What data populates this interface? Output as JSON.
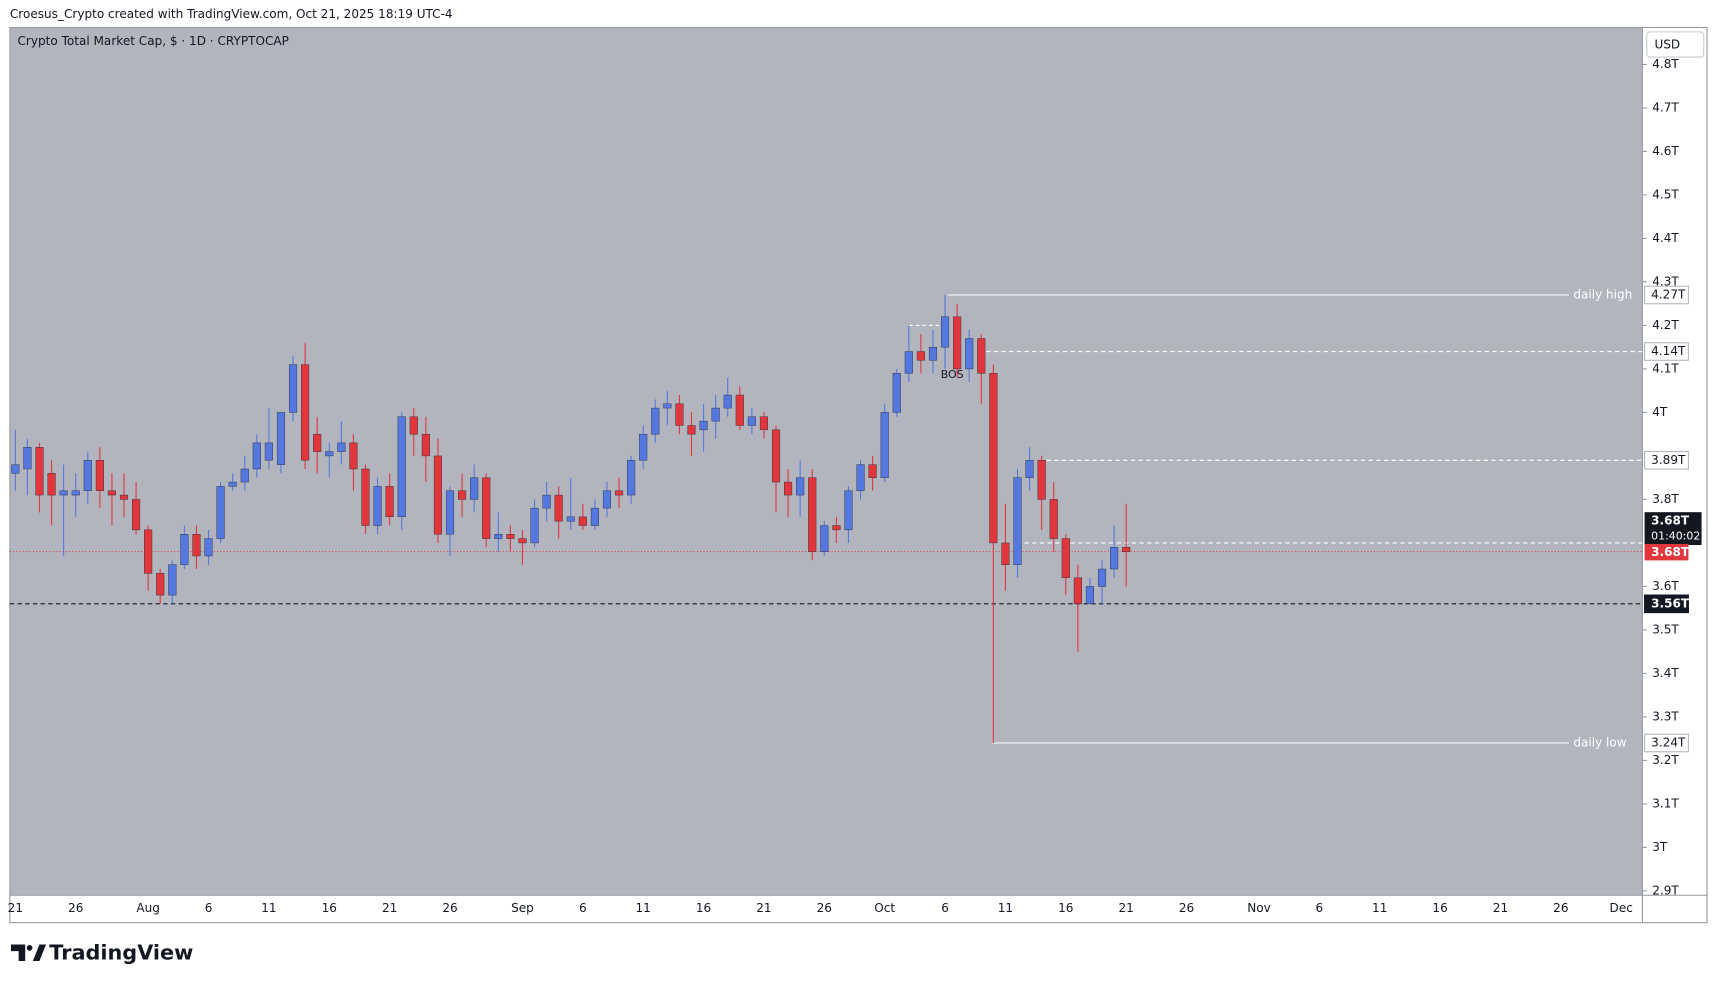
{
  "header": "Croesus_Crypto created with TradingView.com, Oct 21, 2025 18:19 UTC-4",
  "footer": "TradingView",
  "chart_data": {
    "type": "candlestick",
    "title": "Crypto Total Market Cap, $ · 1D · CRYPTOCAP",
    "currency": "USD",
    "up_color": "#5578e0",
    "down_color": "#e2363d",
    "categories": [
      "21",
      null,
      null,
      null,
      null,
      "26",
      null,
      null,
      null,
      null,
      null,
      "Aug",
      null,
      null,
      null,
      null,
      "6",
      null,
      null,
      null,
      null,
      "11",
      null,
      null,
      null,
      null,
      "16",
      null,
      null,
      null,
      null,
      "21",
      null,
      null,
      null,
      null,
      "26",
      null,
      null,
      null,
      null,
      null,
      "Sep",
      null,
      null,
      null,
      null,
      "6",
      null,
      null,
      null,
      null,
      "11",
      null,
      null,
      null,
      null,
      "16",
      null,
      null,
      null,
      null,
      "21",
      null,
      null,
      null,
      null,
      "26",
      null,
      null,
      null,
      null,
      "Oct",
      null,
      null,
      null,
      null,
      "6",
      null,
      null,
      null,
      null,
      "11",
      null,
      null,
      null,
      null,
      "16",
      null,
      null,
      null,
      null,
      "21",
      null,
      null,
      null,
      null,
      "26",
      null,
      null,
      null,
      null,
      null,
      "Nov",
      null,
      null,
      null,
      null,
      "6",
      null,
      null,
      null,
      null,
      "11",
      null,
      null,
      null,
      null,
      "16",
      null,
      null,
      null,
      null,
      "21",
      null,
      null,
      null,
      null,
      "26",
      null,
      null,
      null,
      null,
      "Dec"
    ],
    "open": [
      3.86,
      3.87,
      3.92,
      3.86,
      3.81,
      3.81,
      3.82,
      3.89,
      3.82,
      3.81,
      3.8,
      3.73,
      3.63,
      3.58,
      3.65,
      3.72,
      3.67,
      3.71,
      3.83,
      3.84,
      3.87,
      3.89,
      3.88,
      4.0,
      4.11,
      3.95,
      3.9,
      3.91,
      3.93,
      3.87,
      3.74,
      3.83,
      3.76,
      3.99,
      3.95,
      3.9,
      3.72,
      3.82,
      3.8,
      3.85,
      3.71,
      3.72,
      3.71,
      3.7,
      3.78,
      3.81,
      3.75,
      3.76,
      3.74,
      3.78,
      3.82,
      3.81,
      3.89,
      3.95,
      4.01,
      4.02,
      3.97,
      3.96,
      3.98,
      4.01,
      4.04,
      3.97,
      3.99,
      3.96,
      3.84,
      3.81,
      3.85,
      3.68,
      3.74,
      3.73,
      3.82,
      3.88,
      3.85,
      4.0,
      4.09,
      4.14,
      4.12,
      4.15,
      4.22,
      4.1,
      4.17,
      4.09,
      3.7,
      3.65,
      3.85,
      3.89,
      3.8,
      3.71,
      3.62,
      3.56,
      3.6,
      3.64,
      3.69,
      null,
      null,
      null,
      null,
      null,
      null,
      null,
      null,
      null,
      null,
      null,
      null,
      null,
      null,
      null,
      null,
      null,
      null,
      null,
      null,
      null,
      null,
      null,
      null,
      null,
      null,
      null,
      null,
      null,
      null,
      null,
      null,
      null,
      null,
      null,
      null,
      null,
      null,
      null,
      null,
      null
    ],
    "high": [
      3.96,
      3.94,
      3.93,
      3.89,
      3.88,
      3.86,
      3.91,
      3.92,
      3.86,
      3.86,
      3.84,
      3.74,
      3.64,
      3.66,
      3.74,
      3.74,
      3.73,
      3.84,
      3.86,
      3.9,
      3.95,
      4.01,
      4.0,
      4.13,
      4.16,
      3.99,
      3.93,
      3.98,
      3.95,
      3.88,
      3.85,
      3.86,
      4.0,
      4.01,
      3.99,
      3.94,
      3.83,
      3.86,
      3.88,
      3.86,
      3.77,
      3.74,
      3.73,
      3.8,
      3.84,
      3.83,
      3.85,
      3.79,
      3.8,
      3.84,
      3.85,
      3.9,
      3.97,
      4.03,
      4.05,
      4.04,
      4.0,
      4.02,
      4.04,
      4.08,
      4.06,
      4.01,
      4.0,
      3.97,
      3.87,
      3.89,
      3.87,
      3.75,
      3.76,
      3.83,
      3.89,
      3.9,
      4.02,
      4.1,
      4.2,
      4.18,
      4.19,
      4.27,
      4.25,
      4.19,
      4.18,
      4.11,
      3.79,
      3.87,
      3.92,
      3.9,
      3.84,
      3.72,
      3.65,
      3.62,
      3.66,
      3.74,
      3.79,
      null,
      null,
      null,
      null,
      null,
      null,
      null,
      null,
      null,
      null,
      null,
      null,
      null,
      null,
      null,
      null,
      null,
      null,
      null,
      null,
      null,
      null,
      null,
      null,
      null,
      null,
      null,
      null,
      null,
      null,
      null,
      null,
      null,
      null,
      null,
      null,
      null,
      null,
      null,
      null,
      null
    ],
    "low": [
      3.82,
      3.81,
      3.77,
      3.74,
      3.67,
      3.76,
      3.79,
      3.78,
      3.74,
      3.76,
      3.72,
      3.59,
      3.56,
      3.56,
      3.64,
      3.64,
      3.65,
      3.7,
      3.82,
      3.82,
      3.85,
      3.87,
      3.86,
      3.98,
      3.87,
      3.86,
      3.85,
      3.88,
      3.82,
      3.72,
      3.72,
      3.74,
      3.73,
      3.9,
      3.84,
      3.7,
      3.67,
      3.76,
      3.77,
      3.69,
      3.68,
      3.68,
      3.65,
      3.69,
      3.75,
      3.71,
      3.73,
      3.73,
      3.73,
      3.76,
      3.78,
      3.79,
      3.87,
      3.93,
      3.97,
      3.95,
      3.9,
      3.91,
      3.94,
      3.99,
      3.96,
      3.95,
      3.94,
      3.77,
      3.76,
      3.76,
      3.66,
      3.67,
      3.7,
      3.7,
      3.8,
      3.82,
      3.84,
      3.99,
      4.07,
      4.09,
      4.09,
      4.1,
      4.08,
      4.07,
      4.02,
      3.24,
      3.59,
      3.62,
      3.82,
      3.73,
      3.68,
      3.58,
      3.45,
      3.56,
      3.56,
      3.62,
      3.6,
      null,
      null,
      null,
      null,
      null,
      null,
      null,
      null,
      null,
      null,
      null,
      null,
      null,
      null,
      null,
      null,
      null,
      null,
      null,
      null,
      null,
      null,
      null,
      null,
      null,
      null,
      null,
      null,
      null,
      null,
      null,
      null,
      null,
      null,
      null,
      null,
      null,
      null,
      null,
      null,
      null
    ],
    "close": [
      3.88,
      3.92,
      3.81,
      3.81,
      3.82,
      3.82,
      3.89,
      3.82,
      3.81,
      3.8,
      3.73,
      3.63,
      3.58,
      3.65,
      3.72,
      3.67,
      3.71,
      3.83,
      3.84,
      3.87,
      3.93,
      3.93,
      4.0,
      4.11,
      3.89,
      3.91,
      3.91,
      3.93,
      3.87,
      3.74,
      3.83,
      3.76,
      3.99,
      3.95,
      3.9,
      3.72,
      3.82,
      3.8,
      3.85,
      3.71,
      3.72,
      3.71,
      3.7,
      3.78,
      3.81,
      3.75,
      3.76,
      3.74,
      3.78,
      3.82,
      3.81,
      3.89,
      3.95,
      4.01,
      4.02,
      3.97,
      3.95,
      3.98,
      4.01,
      4.04,
      3.97,
      3.99,
      3.96,
      3.84,
      3.81,
      3.85,
      3.68,
      3.74,
      3.73,
      3.82,
      3.88,
      3.85,
      4.0,
      4.09,
      4.14,
      4.12,
      4.15,
      4.22,
      4.1,
      4.17,
      4.09,
      3.7,
      3.65,
      3.85,
      3.89,
      3.8,
      3.71,
      3.62,
      3.56,
      3.6,
      3.64,
      3.69,
      3.68,
      null,
      null,
      null,
      null,
      null,
      null,
      null,
      null,
      null,
      null,
      null,
      null,
      null,
      null,
      null,
      null,
      null,
      null,
      null,
      null,
      null,
      null,
      null,
      null,
      null,
      null,
      null,
      null,
      null,
      null,
      null,
      null,
      null,
      null,
      null,
      null,
      null,
      null,
      null,
      null,
      null
    ],
    "ylim": [
      2.89,
      4.885
    ],
    "yticks": [
      {
        "value": 2.9,
        "label": "2.9T"
      },
      {
        "value": 3,
        "label": "3T"
      },
      {
        "value": 3.1,
        "label": "3.1T"
      },
      {
        "value": 3.2,
        "label": "3.2T"
      },
      {
        "value": 3.3,
        "label": "3.3T"
      },
      {
        "value": 3.4,
        "label": "3.4T"
      },
      {
        "value": 3.5,
        "label": "3.5T"
      },
      {
        "value": 3.6,
        "label": "3.6T"
      },
      {
        "value": 3.8,
        "label": "3.8T"
      },
      {
        "value": 4,
        "label": "4T"
      },
      {
        "value": 4.1,
        "label": "4.1T"
      },
      {
        "value": 4.2,
        "label": "4.2T"
      },
      {
        "value": 4.3,
        "label": "4.3T"
      },
      {
        "value": 4.4,
        "label": "4.4T"
      },
      {
        "value": 4.5,
        "label": "4.5T"
      },
      {
        "value": 4.6,
        "label": "4.6T"
      },
      {
        "value": 4.7,
        "label": "4.7T"
      },
      {
        "value": 4.8,
        "label": "4.8T"
      }
    ],
    "grid": false,
    "levels": [
      {
        "value": 4.27,
        "label": "4.27T",
        "style": "solid",
        "note": "daily high"
      },
      {
        "value": 4.14,
        "label": "4.14T",
        "style": "dashed"
      },
      {
        "value": 3.89,
        "label": "3.89T",
        "style": "dashed"
      },
      {
        "value": 3.7,
        "style": "dashed"
      },
      {
        "value": 3.56,
        "label": "3.56T",
        "style": "black-dashed"
      },
      {
        "value": 3.24,
        "label": "3.24T",
        "style": "solid",
        "note": "daily low"
      }
    ],
    "last_price": {
      "value": 3.68,
      "label": "3.68T",
      "countdown": "01:40:02"
    },
    "annotation": {
      "value": 4.2,
      "text": "BOS"
    }
  }
}
